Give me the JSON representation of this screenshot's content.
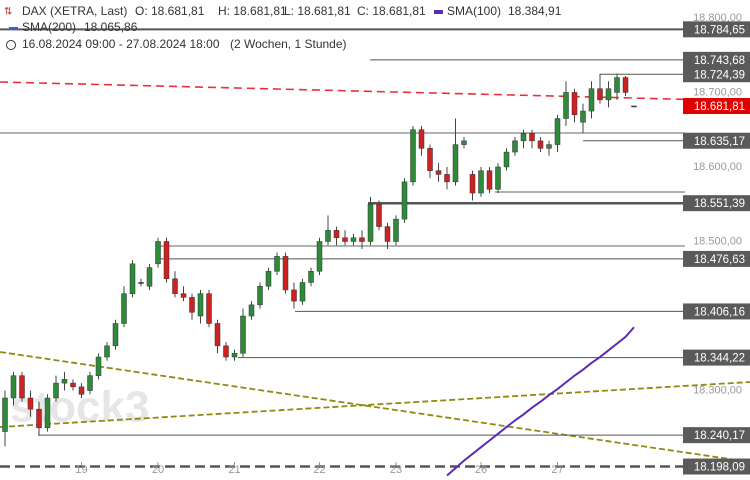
{
  "chart_data": {
    "type": "candlestick",
    "title": "DAX (XETRA, Last)",
    "quote": [
      "O: 18.681,81",
      "H: 18.681,81",
      "L: 18.681,81",
      "C: 18.681,81"
    ],
    "indicator_names": [
      "SMA(100)",
      "SMA(200)"
    ],
    "indicator_labels": [
      "18.384,91",
      "18.065,86"
    ],
    "indicator_colors": [
      "#5b2bb5",
      "#3a63c9"
    ],
    "period": "16.08.2024 09:00 - 27.08.2024 18:00",
    "interval": "(2 Wochen, 1 Stunde)",
    "watermark": "stock3",
    "categories": [
      null,
      null,
      null,
      null,
      null,
      null,
      null,
      null,
      null,
      "19",
      null,
      null,
      null,
      null,
      null,
      null,
      null,
      null,
      "20",
      null,
      null,
      null,
      null,
      null,
      null,
      null,
      null,
      "21",
      null,
      null,
      null,
      null,
      null,
      null,
      null,
      null,
      null,
      "22",
      null,
      null,
      null,
      null,
      null,
      null,
      null,
      null,
      "23",
      null,
      null,
      null,
      null,
      null,
      null,
      null,
      null,
      null,
      "26",
      null,
      null,
      null,
      null,
      null,
      null,
      null,
      null,
      "27",
      null,
      null,
      null,
      null,
      null,
      null,
      null,
      null,
      null
    ],
    "open": [
      18245,
      18290,
      18320,
      18290,
      18275,
      18250,
      18290,
      18310,
      18310,
      18305,
      18300,
      18320,
      18345,
      18360,
      18390,
      18430,
      18445,
      18440,
      18470,
      18500,
      18450,
      18430,
      18425,
      18400,
      18430,
      18390,
      18360,
      18345,
      18350,
      18400,
      18415,
      18440,
      18460,
      18480,
      18435,
      18420,
      18445,
      18460,
      18500,
      18515,
      18505,
      18500,
      18505,
      18500,
      18550,
      18520,
      18500,
      18530,
      18580,
      18650,
      18625,
      18595,
      18590,
      18580,
      18630,
      18590,
      18565,
      18595,
      18570,
      18600,
      18620,
      18635,
      18645,
      18635,
      18625,
      18630,
      18665,
      18700,
      18660,
      18675,
      18705,
      18690,
      18700,
      18720,
      18681.81
    ],
    "high": [
      18300,
      18325,
      18325,
      18300,
      18285,
      18295,
      18320,
      18325,
      18315,
      18310,
      18325,
      18350,
      18365,
      18395,
      18440,
      18475,
      18450,
      18470,
      18505,
      18505,
      18460,
      18440,
      18430,
      18435,
      18435,
      18395,
      18365,
      18355,
      18410,
      18420,
      18445,
      18465,
      18485,
      18485,
      18445,
      18450,
      18465,
      18505,
      18535,
      18520,
      18515,
      18510,
      18515,
      18560,
      18555,
      18525,
      18535,
      18585,
      18655,
      18655,
      18630,
      18605,
      18600,
      18665,
      18640,
      18595,
      18600,
      18600,
      18605,
      18625,
      18640,
      18650,
      18650,
      18640,
      18635,
      18670,
      18715,
      18705,
      18685,
      18715,
      18725,
      18715,
      18725,
      18722,
      18681.81
    ],
    "low": [
      18225,
      18280,
      18285,
      18265,
      18240,
      18245,
      18285,
      18300,
      18300,
      18290,
      18295,
      18315,
      18340,
      18355,
      18385,
      18425,
      18440,
      18435,
      18465,
      18445,
      18425,
      18420,
      18395,
      18390,
      18385,
      18350,
      18340,
      18340,
      18345,
      18395,
      18410,
      18435,
      18455,
      18430,
      18410,
      18415,
      18440,
      18455,
      18495,
      18495,
      18495,
      18495,
      18490,
      18495,
      18515,
      18490,
      18495,
      18525,
      18575,
      18615,
      18585,
      18580,
      18570,
      18575,
      18625,
      18555,
      18560,
      18565,
      18565,
      18595,
      18615,
      18625,
      18625,
      18620,
      18615,
      18620,
      18655,
      18660,
      18645,
      18665,
      18685,
      18680,
      18690,
      18695,
      18681.81
    ],
    "close": [
      18290,
      18320,
      18290,
      18275,
      18250,
      18290,
      18310,
      18315,
      18305,
      18295,
      18320,
      18345,
      18360,
      18390,
      18430,
      18470,
      18445,
      18465,
      18500,
      18450,
      18430,
      18425,
      18405,
      18430,
      18390,
      18360,
      18345,
      18350,
      18400,
      18415,
      18440,
      18460,
      18480,
      18435,
      18420,
      18445,
      18460,
      18500,
      18515,
      18505,
      18500,
      18505,
      18500,
      18550,
      18520,
      18500,
      18530,
      18580,
      18650,
      18625,
      18595,
      18590,
      18580,
      18630,
      18635,
      18565,
      18595,
      18570,
      18600,
      18620,
      18635,
      18645,
      18635,
      18625,
      18630,
      18665,
      18700,
      18670,
      18675,
      18705,
      18690,
      18705,
      18720,
      18700,
      18681.81
    ],
    "up_color": "#2e8b3a",
    "down_color": "#cc2222",
    "sma100": [
      null,
      null,
      null,
      null,
      null,
      null,
      null,
      null,
      null,
      null,
      null,
      null,
      null,
      null,
      null,
      null,
      null,
      null,
      null,
      null,
      null,
      null,
      null,
      null,
      null,
      null,
      null,
      null,
      null,
      null,
      null,
      null,
      null,
      null,
      null,
      null,
      null,
      null,
      null,
      null,
      null,
      null,
      null,
      null,
      null,
      null,
      null,
      null,
      null,
      null,
      null,
      null,
      18186,
      18196,
      18206,
      18215,
      18224,
      18233,
      18242,
      18251,
      18260,
      18268,
      18277,
      18285,
      18294,
      18302,
      18311,
      18320,
      18328,
      18337,
      18345,
      18354,
      18363,
      18372,
      18384.91
    ],
    "levels": [
      {
        "value": 18784.65,
        "label": "18.784,65"
      },
      {
        "value": 18743.68,
        "label": "18.743,68"
      },
      {
        "value": 18724.39,
        "label": "18.724,39"
      },
      {
        "value": 18681.81,
        "label": "18.681,81",
        "color": "#e00000"
      },
      {
        "value": 18635.17,
        "label": "18.635,17"
      },
      {
        "value": 18551.39,
        "label": "18.551,39"
      },
      {
        "value": 18476.63,
        "label": "18.476,63"
      },
      {
        "value": 18406.16,
        "label": "18.406,16"
      },
      {
        "value": 18344.22,
        "label": "18.344,22"
      },
      {
        "value": 18240.17,
        "label": "18.240,17"
      },
      {
        "value": 18198.09,
        "label": "18.198,09"
      }
    ],
    "ylim": [
      18180,
      18824
    ],
    "yticks": [
      {
        "value": 18800,
        "label": "18.800,00"
      },
      {
        "value": 18700,
        "label": "18.700,00"
      },
      {
        "value": 18600,
        "label": "18.600,00"
      },
      {
        "value": 18500,
        "label": "18.500,00"
      },
      {
        "value": 18300,
        "label": "18.300,00"
      }
    ]
  }
}
